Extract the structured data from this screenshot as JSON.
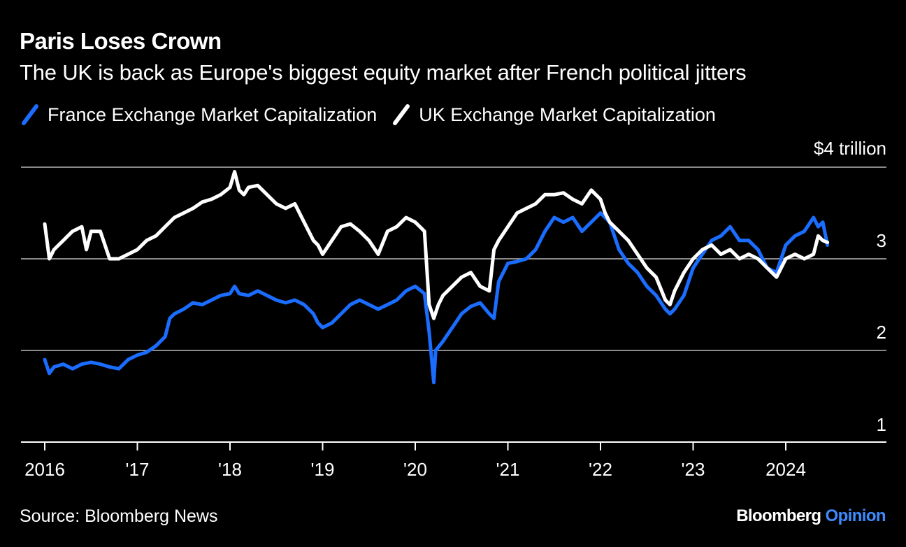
{
  "title": "Paris Loses Crown",
  "subtitle": "The UK is back as Europe's biggest equity market after French political jitters",
  "source": "Source: Bloomberg News",
  "brand": {
    "name": "Bloomberg",
    "suffix": "Opinion"
  },
  "colors": {
    "france": "#1a6dff",
    "uk": "#ffffff",
    "grid": "#8a8a8a",
    "background": "#000000",
    "brand_accent": "#3d8bff"
  },
  "chart_data": {
    "type": "line",
    "title": "Paris Loses Crown",
    "subtitle": "The UK is back as Europe's biggest equity market after French political jitters",
    "xlabel": "",
    "ylabel": "",
    "y_unit_label": "$4 trillion",
    "ylim": [
      1,
      4
    ],
    "xlim": [
      2016.0,
      2024.75
    ],
    "y_ticks": [
      {
        "value": 4,
        "label": "$4 trillion"
      },
      {
        "value": 3,
        "label": "3"
      },
      {
        "value": 2,
        "label": "2"
      },
      {
        "value": 1,
        "label": "1"
      }
    ],
    "x_ticks": [
      {
        "value": 2016,
        "label": "2016"
      },
      {
        "value": 2017,
        "label": "'17"
      },
      {
        "value": 2018,
        "label": "'18"
      },
      {
        "value": 2019,
        "label": "'19"
      },
      {
        "value": 2020,
        "label": "'20"
      },
      {
        "value": 2021,
        "label": "'21"
      },
      {
        "value": 2022,
        "label": "'22"
      },
      {
        "value": 2023,
        "label": "'23"
      },
      {
        "value": 2024,
        "label": "2024"
      }
    ],
    "grid": true,
    "legend_position": "top-left",
    "series": [
      {
        "name": "France Exchange Market Capitalization",
        "color": "#1a6dff",
        "x": [
          2016.0,
          2016.05,
          2016.1,
          2016.2,
          2016.3,
          2016.4,
          2016.5,
          2016.6,
          2016.7,
          2016.8,
          2016.9,
          2017.0,
          2017.1,
          2017.2,
          2017.3,
          2017.35,
          2017.4,
          2017.5,
          2017.6,
          2017.7,
          2017.8,
          2017.9,
          2018.0,
          2018.05,
          2018.1,
          2018.2,
          2018.3,
          2018.4,
          2018.5,
          2018.6,
          2018.7,
          2018.8,
          2018.9,
          2018.95,
          2019.0,
          2019.1,
          2019.2,
          2019.3,
          2019.4,
          2019.5,
          2019.6,
          2019.7,
          2019.8,
          2019.9,
          2020.0,
          2020.1,
          2020.15,
          2020.2,
          2020.22,
          2020.3,
          2020.4,
          2020.5,
          2020.6,
          2020.7,
          2020.8,
          2020.85,
          2020.9,
          2021.0,
          2021.1,
          2021.2,
          2021.3,
          2021.4,
          2021.5,
          2021.6,
          2021.7,
          2021.8,
          2021.9,
          2022.0,
          2022.1,
          2022.2,
          2022.3,
          2022.4,
          2022.5,
          2022.6,
          2022.7,
          2022.75,
          2022.8,
          2022.9,
          2023.0,
          2023.1,
          2023.2,
          2023.3,
          2023.4,
          2023.5,
          2023.6,
          2023.7,
          2023.8,
          2023.9,
          2024.0,
          2024.1,
          2024.2,
          2024.3,
          2024.35,
          2024.4,
          2024.45
        ],
        "values": [
          1.9,
          1.75,
          1.82,
          1.85,
          1.8,
          1.85,
          1.87,
          1.85,
          1.82,
          1.8,
          1.9,
          1.95,
          1.98,
          2.05,
          2.15,
          2.35,
          2.4,
          2.45,
          2.52,
          2.5,
          2.55,
          2.6,
          2.62,
          2.7,
          2.62,
          2.6,
          2.65,
          2.6,
          2.55,
          2.52,
          2.55,
          2.5,
          2.4,
          2.3,
          2.25,
          2.3,
          2.4,
          2.5,
          2.55,
          2.5,
          2.45,
          2.5,
          2.55,
          2.65,
          2.7,
          2.62,
          2.2,
          1.65,
          2.0,
          2.1,
          2.25,
          2.4,
          2.48,
          2.52,
          2.4,
          2.35,
          2.75,
          2.95,
          2.97,
          3.0,
          3.1,
          3.3,
          3.45,
          3.4,
          3.45,
          3.3,
          3.4,
          3.5,
          3.4,
          3.1,
          2.95,
          2.85,
          2.7,
          2.6,
          2.45,
          2.4,
          2.45,
          2.6,
          2.9,
          3.05,
          3.2,
          3.25,
          3.35,
          3.2,
          3.2,
          3.1,
          2.9,
          2.85,
          3.15,
          3.25,
          3.3,
          3.45,
          3.35,
          3.4,
          3.15
        ]
      },
      {
        "name": "UK Exchange Market Capitalization",
        "color": "#ffffff",
        "x": [
          2016.0,
          2016.05,
          2016.1,
          2016.2,
          2016.3,
          2016.4,
          2016.45,
          2016.5,
          2016.6,
          2016.7,
          2016.8,
          2016.9,
          2017.0,
          2017.1,
          2017.2,
          2017.3,
          2017.4,
          2017.5,
          2017.6,
          2017.7,
          2017.8,
          2017.9,
          2018.0,
          2018.05,
          2018.1,
          2018.15,
          2018.2,
          2018.3,
          2018.4,
          2018.5,
          2018.6,
          2018.7,
          2018.8,
          2018.9,
          2018.95,
          2019.0,
          2019.1,
          2019.2,
          2019.3,
          2019.4,
          2019.5,
          2019.6,
          2019.7,
          2019.8,
          2019.9,
          2020.0,
          2020.1,
          2020.15,
          2020.2,
          2020.25,
          2020.3,
          2020.4,
          2020.5,
          2020.6,
          2020.7,
          2020.8,
          2020.85,
          2020.9,
          2021.0,
          2021.1,
          2021.2,
          2021.3,
          2021.4,
          2021.5,
          2021.6,
          2021.7,
          2021.8,
          2021.9,
          2022.0,
          2022.05,
          2022.1,
          2022.2,
          2022.3,
          2022.4,
          2022.5,
          2022.6,
          2022.7,
          2022.75,
          2022.8,
          2022.9,
          2023.0,
          2023.1,
          2023.2,
          2023.3,
          2023.4,
          2023.5,
          2023.6,
          2023.7,
          2023.8,
          2023.9,
          2024.0,
          2024.1,
          2024.2,
          2024.3,
          2024.35,
          2024.4,
          2024.45
        ],
        "values": [
          3.38,
          3.0,
          3.1,
          3.2,
          3.3,
          3.35,
          3.1,
          3.3,
          3.3,
          3.0,
          3.0,
          3.05,
          3.1,
          3.2,
          3.25,
          3.35,
          3.45,
          3.5,
          3.55,
          3.62,
          3.65,
          3.7,
          3.78,
          3.95,
          3.75,
          3.7,
          3.78,
          3.8,
          3.7,
          3.6,
          3.55,
          3.6,
          3.4,
          3.2,
          3.15,
          3.05,
          3.2,
          3.35,
          3.38,
          3.3,
          3.2,
          3.05,
          3.3,
          3.35,
          3.45,
          3.4,
          3.3,
          2.5,
          2.35,
          2.5,
          2.6,
          2.7,
          2.8,
          2.85,
          2.7,
          2.65,
          3.1,
          3.2,
          3.35,
          3.5,
          3.55,
          3.6,
          3.7,
          3.7,
          3.72,
          3.65,
          3.6,
          3.75,
          3.65,
          3.5,
          3.4,
          3.3,
          3.2,
          3.05,
          2.9,
          2.8,
          2.55,
          2.5,
          2.65,
          2.85,
          3.0,
          3.1,
          3.15,
          3.05,
          3.1,
          3.0,
          3.05,
          3.0,
          2.9,
          2.8,
          3.0,
          3.05,
          3.0,
          3.05,
          3.25,
          3.2,
          3.18
        ]
      }
    ]
  }
}
